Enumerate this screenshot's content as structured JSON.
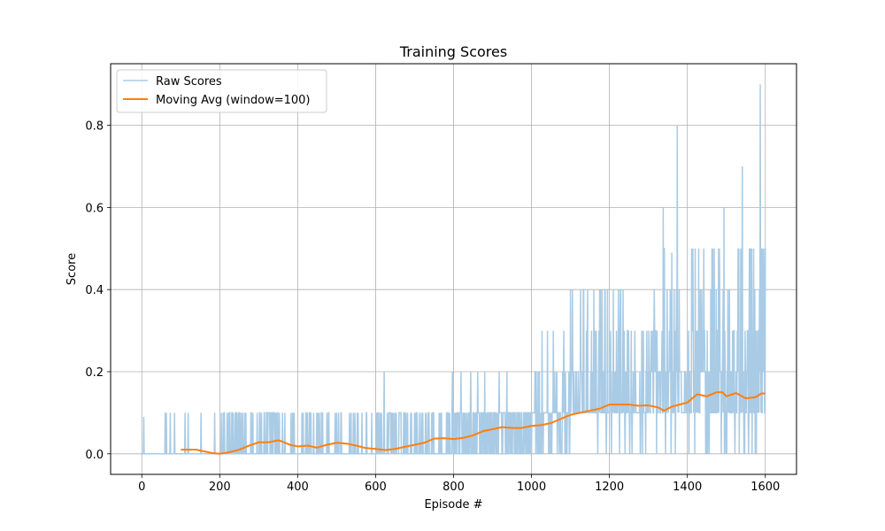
{
  "chart_data": {
    "type": "line",
    "title": "Training Scores",
    "xlabel": "Episode #",
    "ylabel": "Score",
    "xlim": [
      -80,
      1680
    ],
    "ylim": [
      -0.05,
      0.95
    ],
    "xticks": [
      0,
      200,
      400,
      600,
      800,
      1000,
      1200,
      1400,
      1600
    ],
    "yticks": [
      0.0,
      0.2,
      0.4,
      0.6,
      0.8
    ],
    "grid": true,
    "legend": "top-left",
    "series": [
      {
        "name": "Raw Scores",
        "color": "#a9cbe5",
        "episodes": [
          1,
          1600
        ],
        "segments": [
          {
            "start": 1,
            "end": 100,
            "p": 0.08,
            "levels": [
              0.1
            ],
            "weights": [
              1
            ]
          },
          {
            "start": 101,
            "end": 200,
            "p": 0.05,
            "levels": [
              0.1
            ],
            "weights": [
              1
            ]
          },
          {
            "start": 201,
            "end": 360,
            "p": 0.32,
            "levels": [
              0.1
            ],
            "weights": [
              1
            ]
          },
          {
            "start": 361,
            "end": 600,
            "p": 0.2,
            "levels": [
              0.1
            ],
            "weights": [
              1
            ]
          },
          {
            "start": 601,
            "end": 800,
            "p": 0.25,
            "levels": [
              0.1,
              0.2
            ],
            "weights": [
              0.97,
              0.03
            ]
          },
          {
            "start": 801,
            "end": 1000,
            "p": 0.55,
            "levels": [
              0.1,
              0.2
            ],
            "weights": [
              0.93,
              0.07
            ]
          },
          {
            "start": 1001,
            "end": 1100,
            "p": 0.75,
            "levels": [
              0.1,
              0.2,
              0.3
            ],
            "weights": [
              0.8,
              0.15,
              0.05
            ]
          },
          {
            "start": 1101,
            "end": 1300,
            "p": 0.93,
            "levels": [
              0.1,
              0.2,
              0.3,
              0.4
            ],
            "weights": [
              0.6,
              0.25,
              0.1,
              0.05
            ]
          },
          {
            "start": 1301,
            "end": 1600,
            "p": 0.93,
            "levels": [
              0.1,
              0.2,
              0.3,
              0.4,
              0.5
            ],
            "weights": [
              0.45,
              0.3,
              0.12,
              0.08,
              0.05
            ]
          }
        ],
        "peaks": [
          [
            5,
            0.09
          ],
          [
            622,
            0.2
          ],
          [
            819,
            0.2
          ],
          [
            862,
            0.2
          ],
          [
            1100,
            0.4
          ],
          [
            1160,
            0.4
          ],
          [
            1223,
            0.4
          ],
          [
            1338,
            0.6
          ],
          [
            1360,
            0.49
          ],
          [
            1374,
            0.8
          ],
          [
            1420,
            0.5
          ],
          [
            1494,
            0.6
          ],
          [
            1541,
            0.7
          ],
          [
            1587,
            0.9
          ],
          [
            1596,
            0.5
          ]
        ]
      },
      {
        "name": "Moving Avg (window=100)",
        "color": "#ff7f0e",
        "x": [
          100,
          140,
          180,
          200,
          220,
          250,
          275,
          300,
          325,
          350,
          360,
          380,
          400,
          425,
          450,
          475,
          500,
          525,
          550,
          575,
          600,
          625,
          650,
          675,
          700,
          725,
          750,
          775,
          800,
          825,
          850,
          875,
          900,
          925,
          950,
          975,
          1000,
          1025,
          1050,
          1075,
          1100,
          1125,
          1150,
          1175,
          1200,
          1225,
          1250,
          1275,
          1300,
          1325,
          1340,
          1360,
          1380,
          1400,
          1425,
          1450,
          1475,
          1490,
          1500,
          1525,
          1550,
          1575,
          1590,
          1600
        ],
        "y": [
          0.01,
          0.01,
          0.002,
          0.0,
          0.003,
          0.01,
          0.02,
          0.028,
          0.028,
          0.033,
          0.03,
          0.022,
          0.018,
          0.02,
          0.015,
          0.022,
          0.027,
          0.025,
          0.02,
          0.014,
          0.012,
          0.009,
          0.012,
          0.017,
          0.022,
          0.027,
          0.037,
          0.038,
          0.036,
          0.039,
          0.045,
          0.055,
          0.06,
          0.065,
          0.063,
          0.063,
          0.068,
          0.07,
          0.075,
          0.085,
          0.095,
          0.1,
          0.105,
          0.11,
          0.12,
          0.12,
          0.12,
          0.117,
          0.118,
          0.113,
          0.105,
          0.115,
          0.12,
          0.125,
          0.145,
          0.14,
          0.15,
          0.15,
          0.14,
          0.148,
          0.135,
          0.138,
          0.147,
          0.147
        ]
      }
    ]
  }
}
